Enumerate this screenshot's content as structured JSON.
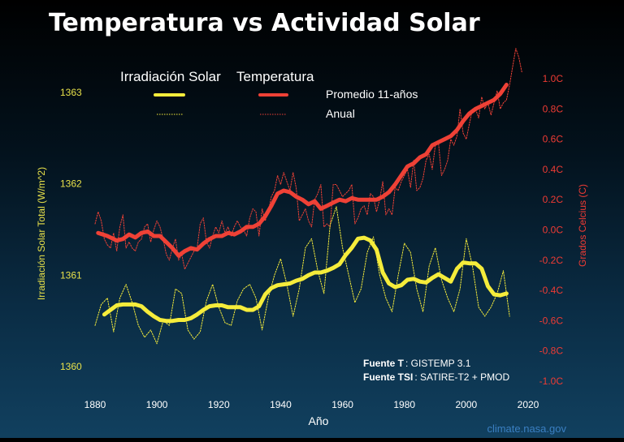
{
  "chart_data": {
    "type": "line",
    "title": "Temperatura vs Actividad Solar",
    "legend": {
      "head_solar": "Irradiación Solar",
      "head_temp": "Temperatura",
      "smooth_label": "Promedio 11-años",
      "annual_label": "Anual"
    },
    "xlabel": "Año",
    "ylabel_left": "Irradiación Solar Total (W/m^2)",
    "ylabel_right": "Grados Celcius (C)",
    "xlim": [
      1870,
      2025
    ],
    "x_ticks": [
      1880,
      1900,
      1920,
      1940,
      1960,
      1980,
      2000,
      2020
    ],
    "ylim_left": [
      1359.85,
      1363.5
    ],
    "y_ticks_left": [
      1360,
      1361,
      1362,
      1363
    ],
    "ylim_right": [
      -1.1,
      1.1
    ],
    "y_ticks_right": [
      "1.0C",
      "0.8C",
      "0.6C",
      "0.4C",
      "0.2C",
      "0.0C",
      "-0.2C",
      "-0.4C",
      "-0.6C",
      "-0.8C",
      "-1.0C"
    ],
    "y_tick_values_right": [
      1.0,
      0.8,
      0.6,
      0.4,
      0.2,
      0.0,
      -0.2,
      -0.4,
      -0.6,
      -0.8,
      -1.0
    ],
    "sources": [
      {
        "label": "Fuente T",
        "value": ": GISTEMP 3.1"
      },
      {
        "label": "Fuente TSI",
        "value": ": SATIRE-T2 + PMOD"
      }
    ],
    "credit": "climate.nasa.gov",
    "colors": {
      "solar": "#f5ec3b",
      "temp": "#ef4136",
      "text": "#ffffff"
    },
    "series": [
      {
        "name": "Temperatura Promedio 11-años",
        "axis": "right",
        "x": [
          1881,
          1884,
          1887,
          1889,
          1891,
          1893,
          1895,
          1897,
          1899,
          1901,
          1903,
          1905,
          1907,
          1909,
          1911,
          1913,
          1915,
          1917,
          1919,
          1921,
          1923,
          1925,
          1927,
          1929,
          1931,
          1933,
          1935,
          1937,
          1939,
          1941,
          1943,
          1945,
          1947,
          1949,
          1951,
          1953,
          1955,
          1957,
          1959,
          1961,
          1963,
          1965,
          1967,
          1969,
          1971,
          1973,
          1975,
          1977,
          1979,
          1981,
          1983,
          1985,
          1987,
          1989,
          1991,
          1993,
          1995,
          1997,
          1999,
          2001,
          2003,
          2005,
          2007,
          2009,
          2011,
          2013
        ],
        "values": [
          -0.02,
          -0.04,
          -0.07,
          -0.06,
          -0.03,
          -0.05,
          -0.02,
          -0.01,
          -0.04,
          -0.04,
          -0.08,
          -0.12,
          -0.17,
          -0.14,
          -0.12,
          -0.13,
          -0.09,
          -0.06,
          -0.04,
          -0.04,
          -0.02,
          -0.03,
          -0.01,
          0.02,
          0.02,
          0.04,
          0.09,
          0.16,
          0.24,
          0.26,
          0.25,
          0.22,
          0.2,
          0.17,
          0.19,
          0.14,
          0.16,
          0.18,
          0.2,
          0.19,
          0.21,
          0.2,
          0.2,
          0.2,
          0.2,
          0.22,
          0.25,
          0.3,
          0.36,
          0.42,
          0.44,
          0.48,
          0.5,
          0.56,
          0.58,
          0.6,
          0.62,
          0.66,
          0.72,
          0.77,
          0.8,
          0.82,
          0.84,
          0.86,
          0.9,
          0.96
        ]
      },
      {
        "name": "Temperatura Anual",
        "axis": "right",
        "x": [
          1880,
          1881,
          1882,
          1883,
          1884,
          1885,
          1886,
          1887,
          1888,
          1889,
          1890,
          1891,
          1892,
          1893,
          1894,
          1895,
          1896,
          1897,
          1898,
          1899,
          1900,
          1901,
          1902,
          1903,
          1904,
          1905,
          1906,
          1907,
          1908,
          1909,
          1910,
          1911,
          1912,
          1913,
          1914,
          1915,
          1916,
          1917,
          1918,
          1919,
          1920,
          1921,
          1922,
          1923,
          1924,
          1925,
          1926,
          1927,
          1928,
          1929,
          1930,
          1931,
          1932,
          1933,
          1934,
          1935,
          1936,
          1937,
          1938,
          1939,
          1940,
          1941,
          1942,
          1943,
          1944,
          1945,
          1946,
          1947,
          1948,
          1949,
          1950,
          1951,
          1952,
          1953,
          1954,
          1955,
          1956,
          1957,
          1958,
          1959,
          1960,
          1961,
          1962,
          1963,
          1964,
          1965,
          1966,
          1967,
          1968,
          1969,
          1970,
          1971,
          1972,
          1973,
          1974,
          1975,
          1976,
          1977,
          1978,
          1979,
          1980,
          1981,
          1982,
          1983,
          1984,
          1985,
          1986,
          1987,
          1988,
          1989,
          1990,
          1991,
          1992,
          1993,
          1994,
          1995,
          1996,
          1997,
          1998,
          1999,
          2000,
          2001,
          2002,
          2003,
          2004,
          2005,
          2006,
          2007,
          2008,
          2009,
          2010,
          2011,
          2012,
          2013,
          2014,
          2015,
          2016,
          2017,
          2018
        ],
        "values": [
          0.04,
          0.12,
          0.06,
          -0.06,
          -0.1,
          -0.12,
          -0.02,
          -0.14,
          0.02,
          0.1,
          -0.12,
          -0.08,
          -0.12,
          -0.14,
          -0.08,
          -0.06,
          0.02,
          0.04,
          -0.08,
          0.0,
          0.06,
          0.02,
          -0.06,
          -0.16,
          -0.2,
          -0.12,
          -0.06,
          -0.2,
          -0.16,
          -0.26,
          -0.22,
          -0.18,
          -0.14,
          -0.12,
          0.04,
          0.08,
          -0.08,
          -0.12,
          -0.04,
          0.02,
          -0.02,
          0.06,
          -0.02,
          0.02,
          -0.04,
          0.02,
          0.06,
          0.02,
          0.0,
          -0.04,
          0.08,
          0.14,
          0.12,
          -0.04,
          0.14,
          0.06,
          0.12,
          0.22,
          0.26,
          0.36,
          0.3,
          0.38,
          0.32,
          0.26,
          0.38,
          0.28,
          0.06,
          0.1,
          0.14,
          0.06,
          0.02,
          0.2,
          0.24,
          0.3,
          0.02,
          0.04,
          0.02,
          0.3,
          0.3,
          0.26,
          0.22,
          0.24,
          0.26,
          0.3,
          0.04,
          0.08,
          0.14,
          0.16,
          0.1,
          0.24,
          0.22,
          0.12,
          0.2,
          0.32,
          0.1,
          0.14,
          0.1,
          0.28,
          0.26,
          0.32,
          0.36,
          0.4,
          0.28,
          0.46,
          0.26,
          0.28,
          0.34,
          0.46,
          0.5,
          0.4,
          0.56,
          0.58,
          0.36,
          0.4,
          0.46,
          0.6,
          0.56,
          0.62,
          0.8,
          0.64,
          0.6,
          0.7,
          0.8,
          0.8,
          0.74,
          0.88,
          0.8,
          0.84,
          0.76,
          0.84,
          0.92,
          0.8,
          0.84,
          0.86,
          0.96,
          1.08,
          1.2,
          1.14,
          1.04
        ]
      },
      {
        "name": "Irradiación Solar Promedio 11-años",
        "axis": "left",
        "x": [
          1883,
          1885,
          1887,
          1889,
          1891,
          1893,
          1895,
          1897,
          1899,
          1901,
          1903,
          1905,
          1907,
          1909,
          1911,
          1913,
          1915,
          1917,
          1919,
          1921,
          1923,
          1925,
          1927,
          1929,
          1931,
          1933,
          1935,
          1937,
          1939,
          1941,
          1943,
          1945,
          1947,
          1949,
          1951,
          1953,
          1955,
          1957,
          1959,
          1961,
          1963,
          1965,
          1967,
          1969,
          1971,
          1973,
          1975,
          1977,
          1979,
          1981,
          1983,
          1985,
          1987,
          1989,
          1991,
          1993,
          1995,
          1997,
          1999,
          2001,
          2003,
          2005,
          2007,
          2009,
          2011,
          2013
        ],
        "values": [
          1360.57,
          1360.62,
          1360.67,
          1360.68,
          1360.68,
          1360.68,
          1360.66,
          1360.6,
          1360.55,
          1360.51,
          1360.5,
          1360.5,
          1360.51,
          1360.51,
          1360.53,
          1360.57,
          1360.62,
          1360.66,
          1360.67,
          1360.67,
          1360.65,
          1360.65,
          1360.65,
          1360.62,
          1360.62,
          1360.66,
          1360.79,
          1360.86,
          1360.89,
          1360.9,
          1360.91,
          1360.94,
          1360.96,
          1361.0,
          1361.03,
          1361.03,
          1361.05,
          1361.08,
          1361.12,
          1361.22,
          1361.3,
          1361.4,
          1361.41,
          1361.38,
          1361.28,
          1361.03,
          1360.91,
          1360.87,
          1360.89,
          1360.95,
          1360.96,
          1360.93,
          1360.92,
          1360.97,
          1361.01,
          1360.97,
          1360.93,
          1361.07,
          1361.14,
          1361.13,
          1361.13,
          1361.07,
          1360.88,
          1360.79,
          1360.78,
          1360.8
        ]
      },
      {
        "name": "Irradiación Solar Anual",
        "axis": "left",
        "x": [
          1880,
          1882,
          1884,
          1886,
          1888,
          1890,
          1892,
          1894,
          1896,
          1898,
          1900,
          1902,
          1904,
          1906,
          1908,
          1910,
          1912,
          1914,
          1916,
          1918,
          1920,
          1922,
          1924,
          1926,
          1928,
          1930,
          1932,
          1934,
          1936,
          1938,
          1940,
          1942,
          1944,
          1946,
          1948,
          1950,
          1952,
          1954,
          1956,
          1958,
          1960,
          1962,
          1964,
          1966,
          1968,
          1970,
          1972,
          1974,
          1976,
          1978,
          1980,
          1982,
          1984,
          1986,
          1988,
          1990,
          1992,
          1994,
          1996,
          1998,
          2000,
          2002,
          2004,
          2006,
          2008,
          2010,
          2012,
          2014
        ],
        "values": [
          1360.45,
          1360.68,
          1360.75,
          1360.38,
          1360.75,
          1360.9,
          1360.7,
          1360.45,
          1360.32,
          1360.4,
          1360.25,
          1360.5,
          1360.45,
          1360.85,
          1360.8,
          1360.4,
          1360.3,
          1360.38,
          1360.72,
          1360.9,
          1360.65,
          1360.48,
          1360.45,
          1360.72,
          1360.85,
          1360.9,
          1360.75,
          1360.4,
          1360.75,
          1361.0,
          1361.18,
          1360.9,
          1360.55,
          1360.85,
          1361.3,
          1361.4,
          1361.05,
          1360.8,
          1361.55,
          1361.75,
          1361.3,
          1361.0,
          1360.7,
          1360.85,
          1361.25,
          1361.42,
          1361.0,
          1360.75,
          1360.6,
          1361.0,
          1361.35,
          1361.25,
          1360.85,
          1360.6,
          1361.1,
          1361.3,
          1360.95,
          1360.75,
          1360.6,
          1360.85,
          1361.4,
          1361.1,
          1360.65,
          1360.55,
          1360.65,
          1360.8,
          1361.05,
          1360.55
        ]
      }
    ]
  }
}
